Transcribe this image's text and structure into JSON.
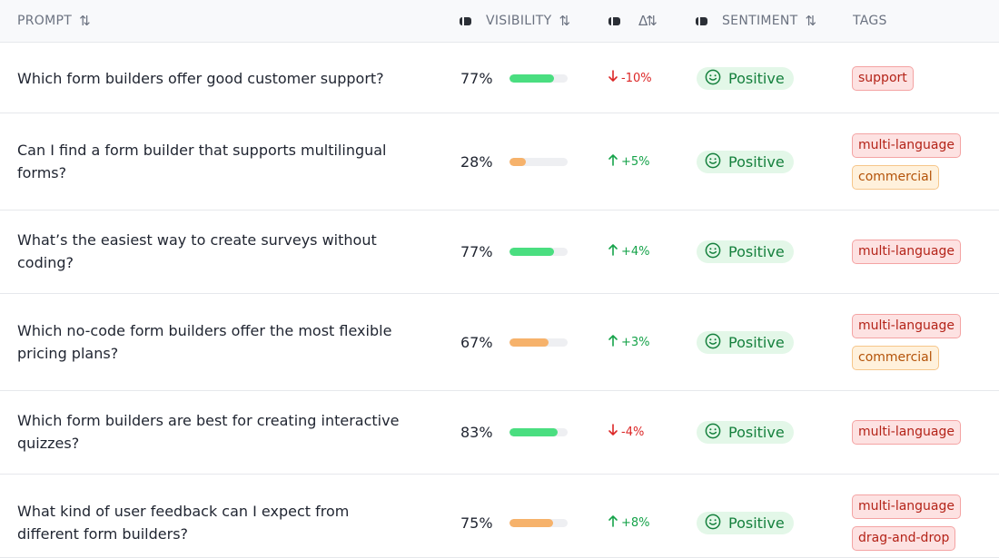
{
  "header": {
    "prompt": "PROMPT",
    "visibility": "VISIBILITY",
    "sentiment": "SENTIMENT",
    "tags": "TAGS",
    "sort_glyph": "⇅",
    "delta_glyph": "Δ⇅"
  },
  "colors": {
    "bar_green": "#4ade80",
    "bar_orange": "#f6b26b",
    "up": "#16a34a",
    "down": "#dc2626"
  },
  "rows": [
    {
      "prompt": "Which form builders offer good customer support?",
      "visibility": "77%",
      "visibility_fraction": 0.77,
      "bar_color": "green",
      "delta": "-10%",
      "direction": "down",
      "sentiment": "Positive",
      "tags": [
        {
          "label": "support",
          "tone": "red"
        }
      ]
    },
    {
      "prompt": "Can I find a form builder that supports multilingual forms?",
      "visibility": "28%",
      "visibility_fraction": 0.28,
      "bar_color": "orange",
      "delta": "+5%",
      "direction": "up",
      "sentiment": "Positive",
      "tags": [
        {
          "label": "multi-language",
          "tone": "red"
        },
        {
          "label": "commercial",
          "tone": "orange"
        }
      ]
    },
    {
      "prompt": "What’s the easiest way to create surveys without coding?",
      "visibility": "77%",
      "visibility_fraction": 0.77,
      "bar_color": "green",
      "delta": "+4%",
      "direction": "up",
      "sentiment": "Positive",
      "tags": [
        {
          "label": "multi-language",
          "tone": "red"
        }
      ]
    },
    {
      "prompt": "Which no-code form builders offer the most flexible pricing plans?",
      "visibility": "67%",
      "visibility_fraction": 0.67,
      "bar_color": "orange",
      "delta": "+3%",
      "direction": "up",
      "sentiment": "Positive",
      "tags": [
        {
          "label": "multi-language",
          "tone": "red"
        },
        {
          "label": "commercial",
          "tone": "orange"
        }
      ]
    },
    {
      "prompt": "Which form builders are best for creating interactive quizzes?",
      "visibility": "83%",
      "visibility_fraction": 0.83,
      "bar_color": "green",
      "delta": "-4%",
      "direction": "down",
      "sentiment": "Positive",
      "tags": [
        {
          "label": "multi-language",
          "tone": "red"
        }
      ]
    },
    {
      "prompt": "What kind of user feedback can I expect from different form builders?",
      "visibility": "75%",
      "visibility_fraction": 0.75,
      "bar_color": "orange",
      "delta": "+8%",
      "direction": "up",
      "sentiment": "Positive",
      "tags": [
        {
          "label": "multi-language",
          "tone": "red"
        },
        {
          "label": "drag-and-drop",
          "tone": "red"
        }
      ]
    }
  ]
}
